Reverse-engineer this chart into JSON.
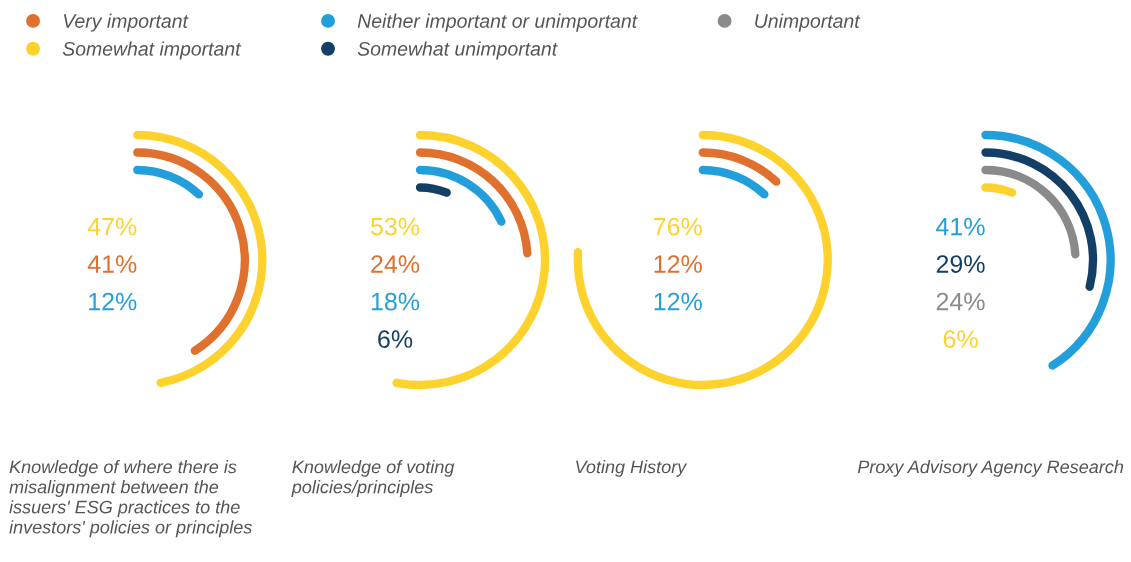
{
  "chart_data": {
    "type": "other",
    "categories": [
      "Knowledge of where there is misalignment between the issuers' ESG practices to the investors' policies or principles",
      "Knowledge of voting policies/principles",
      "Voting History",
      "Proxy Advisory Agency Research"
    ],
    "series": [
      {
        "name": "Very important",
        "color": "#e0702e",
        "values": [
          41,
          24,
          12,
          null
        ],
        "value_labels": [
          "41%",
          "24%",
          "12%",
          null
        ]
      },
      {
        "name": "Somewhat important",
        "color": "#fdd22d",
        "values": [
          47,
          53,
          76,
          6
        ],
        "value_labels": [
          "47%",
          "53%",
          "76%",
          "6%"
        ]
      },
      {
        "name": "Neither important or unimportant",
        "color": "#229fdb",
        "values": [
          12,
          18,
          12,
          41
        ],
        "value_labels": [
          "12%",
          "18%",
          "12%",
          "41%"
        ]
      },
      {
        "name": "Somewhat unimportant",
        "color": "#133f66",
        "values": [
          null,
          6,
          null,
          29
        ],
        "value_labels": [
          null,
          "6%",
          null,
          "29%"
        ]
      },
      {
        "name": "Unimportant",
        "color": "#8a8a8a",
        "values": [
          null,
          null,
          null,
          24
        ],
        "value_labels": [
          null,
          null,
          null,
          "24%"
        ]
      }
    ],
    "data_labels": true,
    "legend": "top left"
  }
}
